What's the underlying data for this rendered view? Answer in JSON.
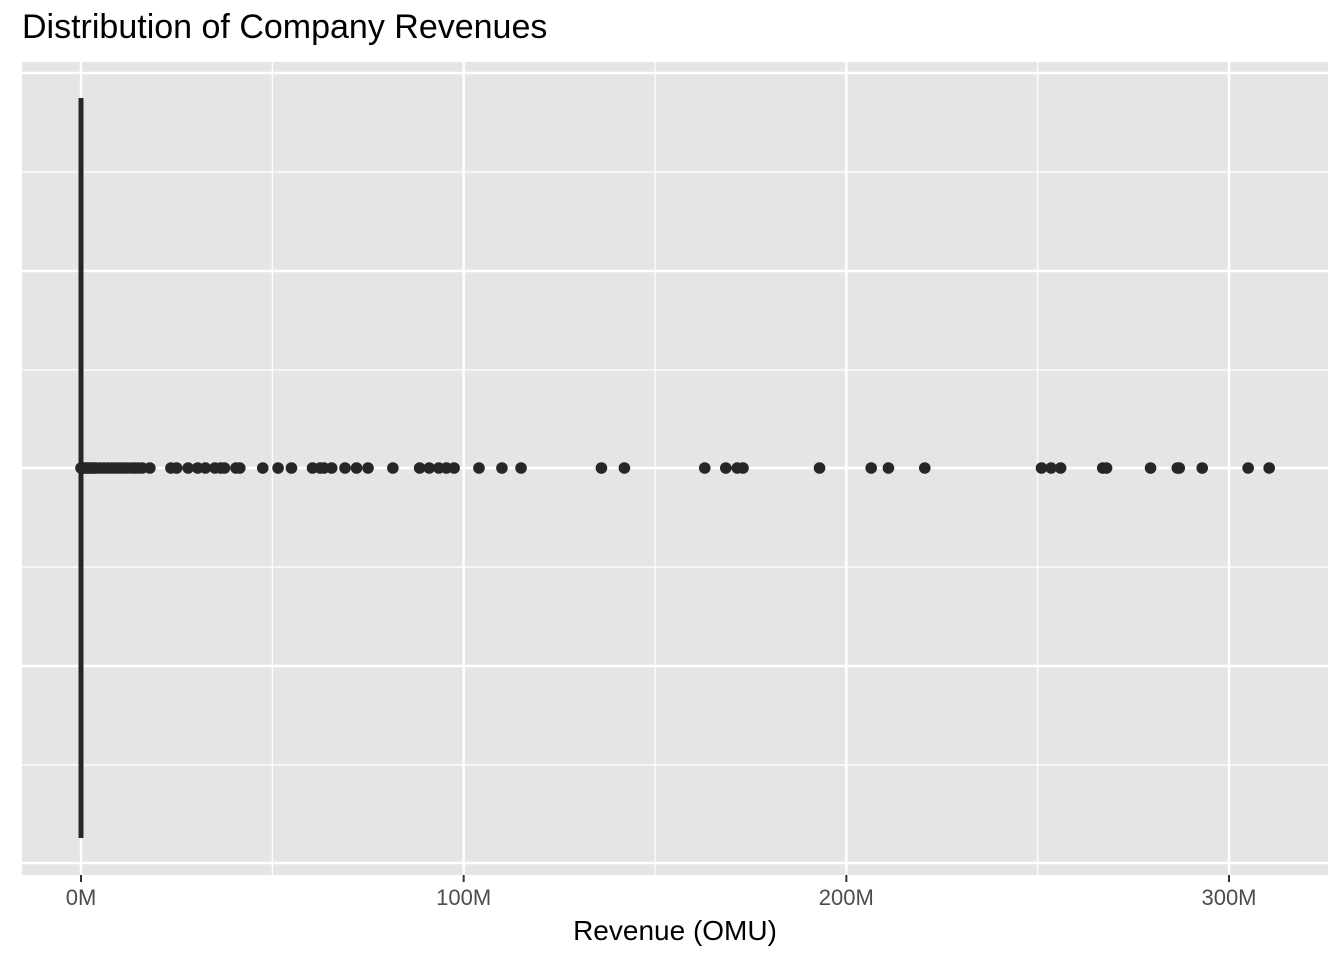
{
  "chart_data": {
    "type": "boxplot",
    "orientation": "horizontal",
    "title": "Distribution of Company Revenues",
    "xlabel": "Revenue (OMU)",
    "ylabel": "",
    "xlim": [
      -15000000,
      325000000
    ],
    "x_ticks": [
      0,
      100000000,
      200000000,
      300000000
    ],
    "x_tick_labels": [
      "0M",
      "100M",
      "200M",
      "300M"
    ],
    "grid": true,
    "background": "#e5e5e5",
    "grid_color": "#ffffff",
    "mark_color": "#262626",
    "box": {
      "min": 0,
      "q1": 0,
      "median": 0,
      "q3": 0,
      "whisker_high": 0
    },
    "outliers": [
      0,
      300000,
      600000,
      1000000,
      1500000,
      2000000,
      2500000,
      3000000,
      3500000,
      4000000,
      5000000,
      6000000,
      7000000,
      8000000,
      9000000,
      10000000,
      11000000,
      12000000,
      13000000,
      14000000,
      15000000,
      16000000,
      18000000,
      23500000,
      25000000,
      28000000,
      30500000,
      32500000,
      35000000,
      36500000,
      37500000,
      40500000,
      41500000,
      47500000,
      51500000,
      55000000,
      60500000,
      62500000,
      63500000,
      65500000,
      69000000,
      72000000,
      75000000,
      81500000,
      88500000,
      91000000,
      93500000,
      95500000,
      97500000,
      104000000,
      110000000,
      115000000,
      136000000,
      142000000,
      163000000,
      168500000,
      171500000,
      173000000,
      193000000,
      206500000,
      211000000,
      220500000,
      251000000,
      253500000,
      256000000,
      267000000,
      268000000,
      279500000,
      286500000,
      287000000,
      293000000,
      305000000,
      310500000
    ]
  }
}
